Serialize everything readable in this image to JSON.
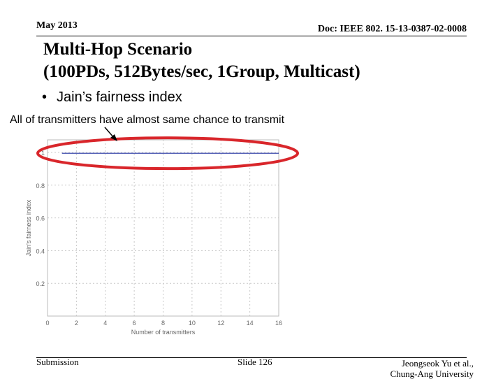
{
  "header": {
    "date": "May 2013",
    "doc": "Doc: IEEE 802. 15-13-0387-02-0008"
  },
  "title": {
    "line1": "Multi-Hop Scenario",
    "line2": "(100PDs, 512Bytes/sec, 1Group, Multicast)"
  },
  "bullet": {
    "marker": "•",
    "text": "Jain’s fairness index"
  },
  "annotation": "All of transmitters have almost same chance to transmit",
  "chart_data": {
    "type": "line",
    "xlabel": "Number of transmitters",
    "ylabel": "Jain's fairness index",
    "xlim": [
      0,
      16
    ],
    "ylim": [
      0,
      1
    ],
    "x_ticks": [
      "0",
      "2",
      "4",
      "6",
      "8",
      "10",
      "12",
      "14",
      "16"
    ],
    "y_ticks": [
      "0.2",
      "0.4",
      "0.6",
      "0.8",
      "1"
    ],
    "grid": true,
    "series": [
      {
        "x": [
          1,
          16
        ],
        "y": [
          0.995,
          0.995
        ],
        "color": "#1f2f9f"
      }
    ],
    "highlight_color": "#d9262b"
  },
  "footer": {
    "left": "Submission",
    "center": "Slide 126",
    "right_line1": "Jeongseok Yu et al.,",
    "right_line2": "Chung-Ang University"
  }
}
